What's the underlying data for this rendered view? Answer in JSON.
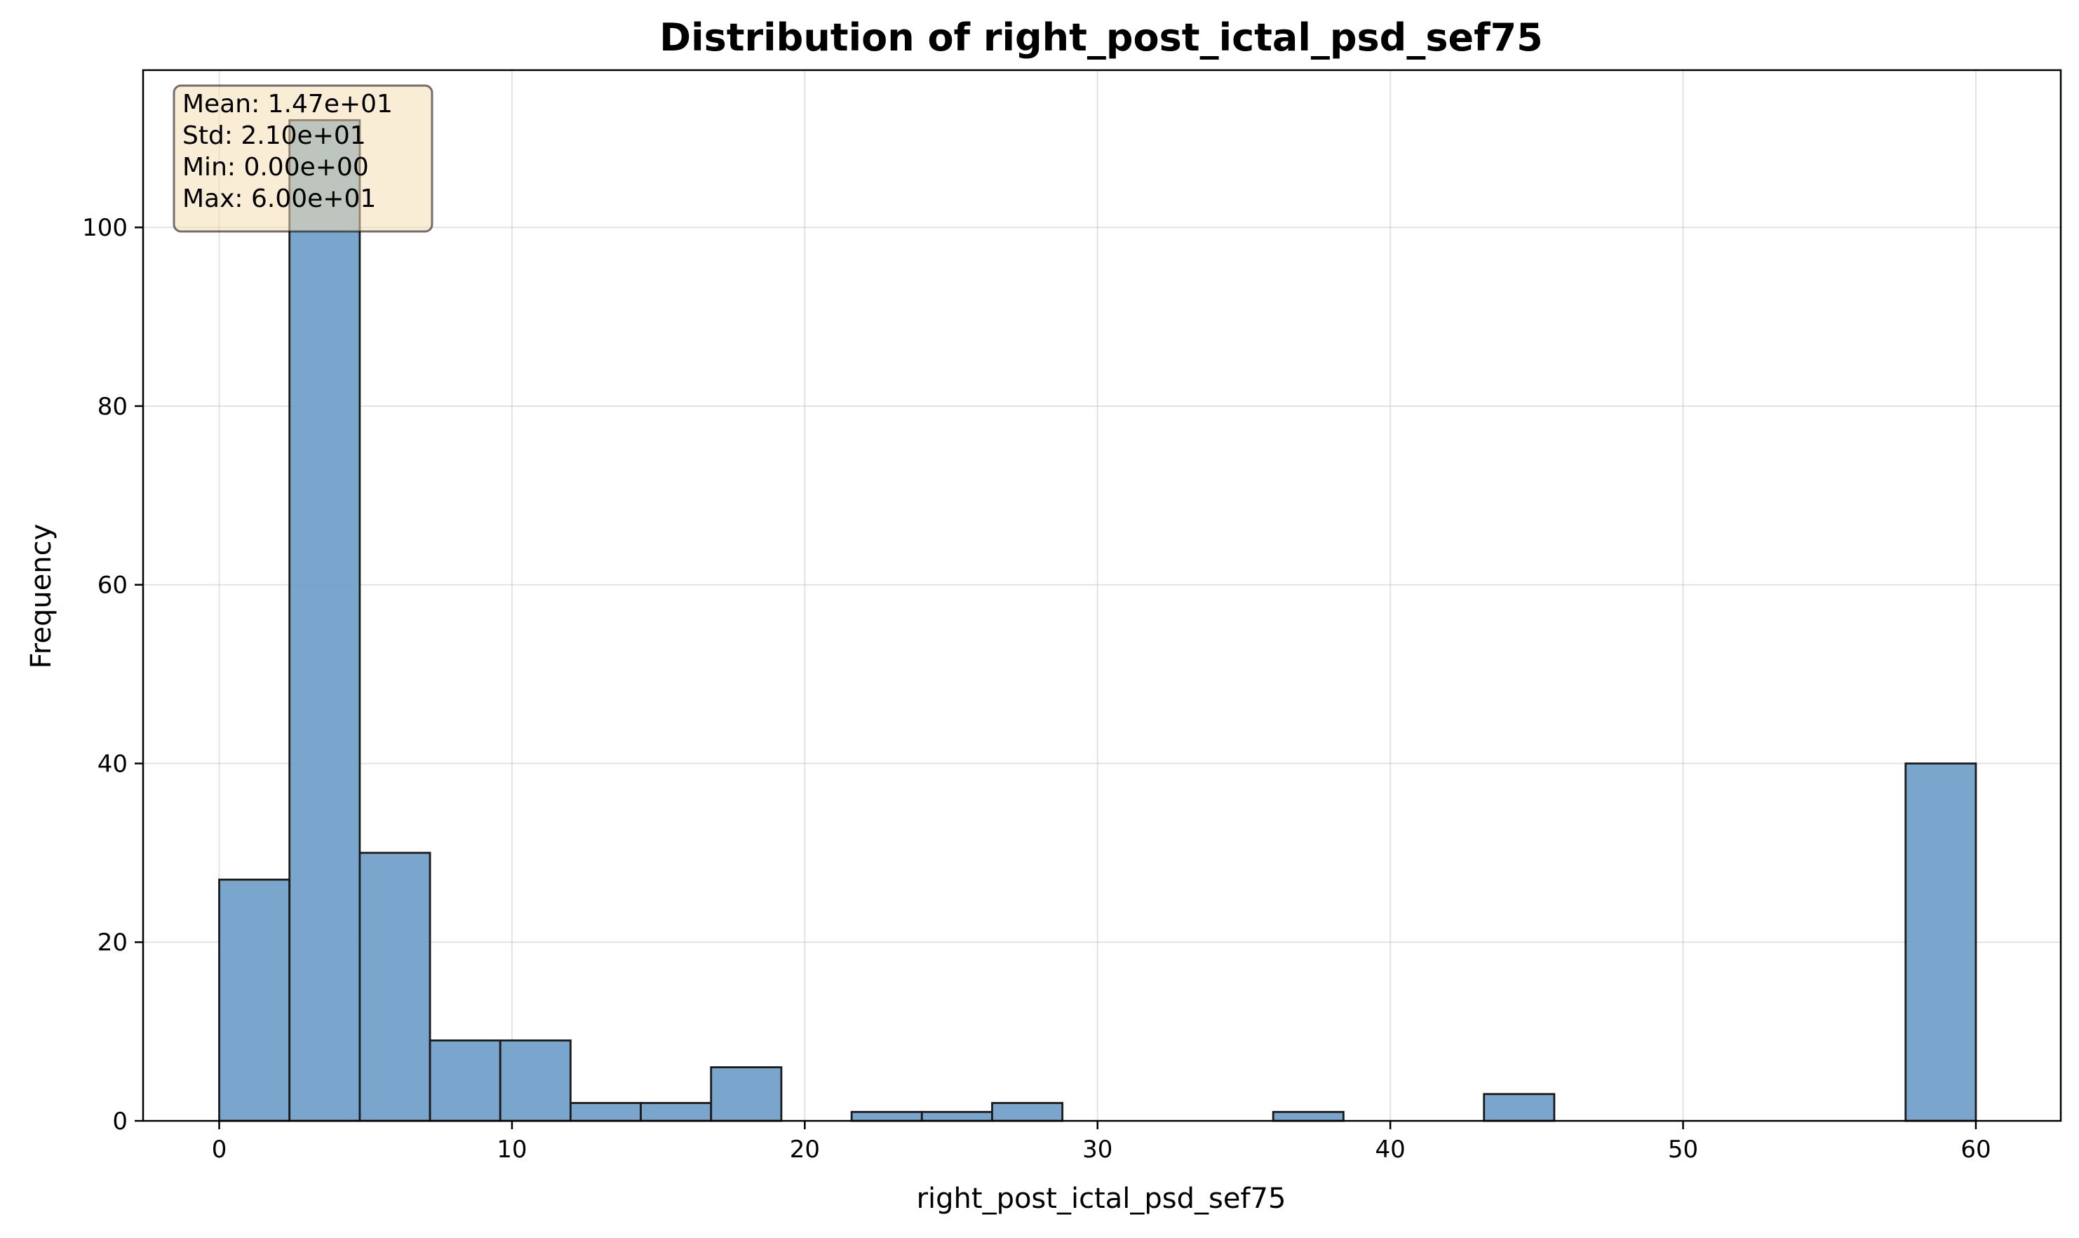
{
  "chart_data": {
    "type": "bar",
    "title": "Distribution of right_post_ictal_psd_sef75",
    "xlabel": "right_post_ictal_psd_sef75",
    "ylabel": "Frequency",
    "xlim": [
      -2.6,
      62.9
    ],
    "ylim": [
      0,
      117.6
    ],
    "xticks": [
      0,
      10,
      20,
      30,
      40,
      50,
      60
    ],
    "yticks": [
      0,
      20,
      40,
      60,
      80,
      100
    ],
    "grid": true,
    "bin_edges": [
      0,
      2.4,
      4.8,
      7.2,
      9.6,
      12.0,
      14.4,
      16.8,
      19.2,
      21.6,
      24.0,
      26.4,
      28.8,
      31.2,
      33.6,
      36.0,
      38.4,
      40.8,
      43.2,
      45.6,
      48.0,
      50.4,
      52.8,
      55.2,
      57.6,
      60.0
    ],
    "counts": [
      27,
      112,
      30,
      9,
      9,
      2,
      2,
      6,
      0,
      1,
      1,
      2,
      0,
      0,
      0,
      1,
      0,
      0,
      3,
      0,
      0,
      0,
      0,
      0,
      40
    ],
    "colors": {
      "bar": "#6f9dc8",
      "edge": "#1a1a1a",
      "stats_box": "#f5deb3"
    },
    "stats_box": {
      "position": "top-left",
      "lines": [
        "Mean: 1.47e+01",
        "Std: 2.10e+01",
        "Min: 0.00e+00",
        "Max: 6.00e+01"
      ]
    }
  }
}
